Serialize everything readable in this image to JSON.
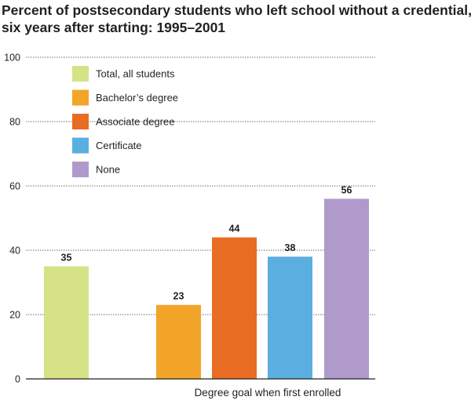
{
  "title_lines": [
    "Percent of postsecondary students who left school without a credential,",
    "six years after starting: 1995–2001"
  ],
  "chart_data": {
    "type": "bar",
    "title": "Percent of postsecondary students who left school without a credential, six years after starting: 1995–2001",
    "xlabel": "Degree goal when first enrolled",
    "ylabel": "",
    "ylim": [
      0,
      100
    ],
    "yticks": [
      0,
      20,
      40,
      60,
      80,
      100
    ],
    "grid": true,
    "legend_position": "top-left",
    "categories": [
      "Total, all students",
      "Bachelor’s degree",
      "Associate degree",
      "Certificate",
      "None"
    ],
    "values": [
      35,
      23,
      44,
      38,
      56
    ],
    "colors": [
      "#d5e386",
      "#f2a528",
      "#e86c22",
      "#5aafe0",
      "#b09acc"
    ]
  }
}
